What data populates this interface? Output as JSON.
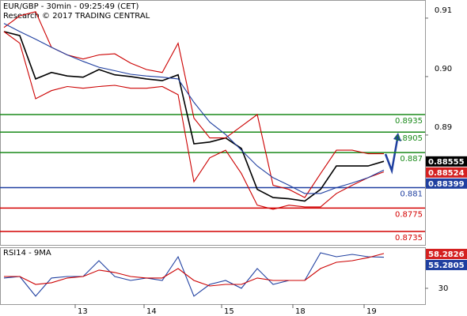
{
  "chart_data": [
    {
      "type": "line",
      "title": "EUR/GBP - 30min - 09:25:49 (CET)",
      "subtitle": "Research © 2017 TRADING CENTRAL",
      "x": [
        0.5,
        2.5,
        4.5,
        6.5,
        8.5,
        10.5,
        12.5,
        14.5,
        16.5,
        18.5,
        20.5,
        22.5,
        24.5,
        26.5,
        28.5,
        30.5,
        32.5,
        34.5,
        36.5,
        38.5,
        40.5,
        42.5,
        44.5,
        46.5,
        48.5
      ],
      "xlim": [
        0,
        53.7
      ],
      "ylim": [
        0.8712,
        0.9131
      ],
      "yticks": [
        {
          "value": 0.91,
          "label": "0.91"
        },
        {
          "value": 0.9,
          "label": "0.90"
        },
        0.89
      ],
      "series": [
        {
          "color": "#000000",
          "values": [
            0.9077,
            0.907,
            0.8996,
            0.9007,
            0.9001,
            0.8999,
            0.9012,
            0.9003,
            0.9,
            0.8996,
            0.8993,
            0.9003,
            0.8885,
            0.8888,
            0.8895,
            0.8877,
            0.8807,
            0.8793,
            0.8791,
            0.8787,
            0.8807,
            0.8847,
            0.8847,
            0.8847,
            0.8855
          ]
        },
        {
          "color": "#cc0000",
          "values": [
            0.9084,
            0.9104,
            0.9111,
            0.905,
            0.9037,
            0.903,
            0.9037,
            0.9039,
            0.9023,
            0.9012,
            0.9007,
            0.9057,
            0.8929,
            0.8895,
            0.8895,
            0.8915,
            0.8935,
            0.8814,
            0.8807,
            0.8793,
            0.8834,
            0.8874,
            0.8874,
            0.8868,
            0.8868
          ]
        },
        {
          "color": "#cc0000",
          "values": [
            0.9077,
            0.9057,
            0.8962,
            0.8976,
            0.8983,
            0.898,
            0.8983,
            0.8985,
            0.898,
            0.898,
            0.8983,
            0.8969,
            0.882,
            0.8861,
            0.8874,
            0.8834,
            0.878,
            0.8773,
            0.878,
            0.8777,
            0.8777,
            0.88,
            0.8814,
            0.8827,
            0.8837
          ]
        },
        {
          "color": "#1f3fa0",
          "values": [
            0.9091,
            0.9077,
            0.9064,
            0.905,
            0.9037,
            0.9026,
            0.9016,
            0.901,
            0.9004,
            0.9001,
            0.8999,
            0.8996,
            0.8956,
            0.8922,
            0.8901,
            0.8874,
            0.8847,
            0.8827,
            0.8814,
            0.88,
            0.88,
            0.881,
            0.8818,
            0.8827,
            0.884
          ]
        }
      ],
      "levels": [
        {
          "value": 0.8935,
          "color": "#1a8a1a"
        },
        {
          "value": 0.8905,
          "color": "#1a8a1a"
        },
        {
          "value": 0.887,
          "color": "#1a8a1a"
        },
        {
          "value": 0.881,
          "color": "#1f3fa0"
        },
        {
          "value": 0.8775,
          "color": "#d40000"
        },
        {
          "value": 0.8735,
          "color": "#d40000"
        }
      ],
      "markers": [
        {
          "value": 0.88555,
          "color": "#000000"
        },
        {
          "value": 0.88524,
          "color": "#d42020"
        },
        {
          "value": 0.88399,
          "color": "#1f3fa0"
        }
      ]
    },
    {
      "type": "line",
      "title": "RSI14 - 9MA",
      "x": [
        0.5,
        2.5,
        4.5,
        6.5,
        8.5,
        10.5,
        12.5,
        14.5,
        16.5,
        18.5,
        20.5,
        22.5,
        24.5,
        26.5,
        28.5,
        30.5,
        32.5,
        34.5,
        36.5,
        38.5,
        40.5,
        42.5,
        44.5,
        46.5,
        48.5
      ],
      "xlim": [
        0,
        53.7
      ],
      "xticks": [
        {
          "value": 9.5,
          "label": "13"
        },
        {
          "value": 18.2,
          "label": "14"
        },
        {
          "value": 28,
          "label": "15"
        },
        {
          "value": 37,
          "label": "18"
        },
        {
          "value": 46,
          "label": "19"
        }
      ],
      "ylim": [
        17.1,
        63.4
      ],
      "yticks": [
        30
      ],
      "series": [
        {
          "color": "#1f3fa0",
          "values": [
            38.4,
            39.6,
            23.6,
            38.4,
            39.6,
            39.6,
            52.5,
            39.6,
            36.4,
            38.4,
            36.4,
            55.7,
            23.6,
            33.2,
            36.4,
            30.0,
            46.1,
            33.2,
            36.4,
            36.4,
            58.9,
            55.7,
            57.6,
            55.7,
            55.3
          ]
        },
        {
          "color": "#cc0000",
          "values": [
            39.6,
            39.6,
            33.2,
            34.5,
            38.4,
            39.6,
            44.8,
            42.9,
            39.6,
            38.4,
            38.4,
            46.1,
            36.4,
            31.9,
            33.2,
            33.2,
            38.4,
            36.4,
            36.4,
            36.4,
            46.1,
            51.2,
            52.5,
            55.0,
            58.3
          ]
        }
      ],
      "markers": [
        {
          "value": 58.2826,
          "color": "#d42020"
        },
        {
          "value": 55.2805,
          "color": "#1f3fa0"
        }
      ]
    }
  ]
}
